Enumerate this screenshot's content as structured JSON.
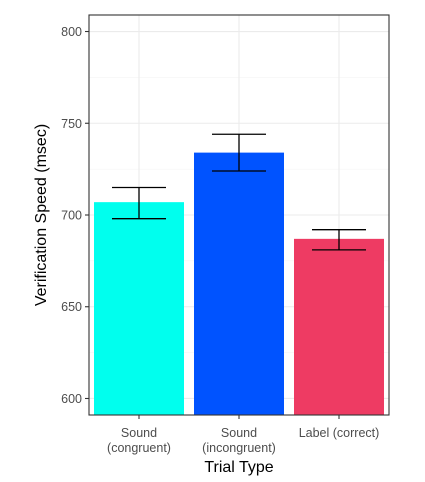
{
  "chart_data": {
    "type": "bar",
    "categories": [
      [
        "Sound",
        "(congruent)"
      ],
      [
        "Sound",
        "(incongruent)"
      ],
      [
        "Label (correct)"
      ]
    ],
    "values": [
      707,
      734,
      687
    ],
    "error_bars": [
      {
        "low": 698,
        "high": 715
      },
      {
        "low": 724,
        "high": 744
      },
      {
        "low": 681,
        "high": 692
      }
    ],
    "colors": [
      "#00FFEE",
      "#0053FF",
      "#EE3B63"
    ],
    "xlabel": "Trial Type",
    "ylabel": "Verification Speed (msec)",
    "ylim": [
      591,
      809
    ],
    "yticks": [
      600,
      650,
      700,
      750,
      800
    ],
    "grid": true,
    "legend": "none"
  }
}
